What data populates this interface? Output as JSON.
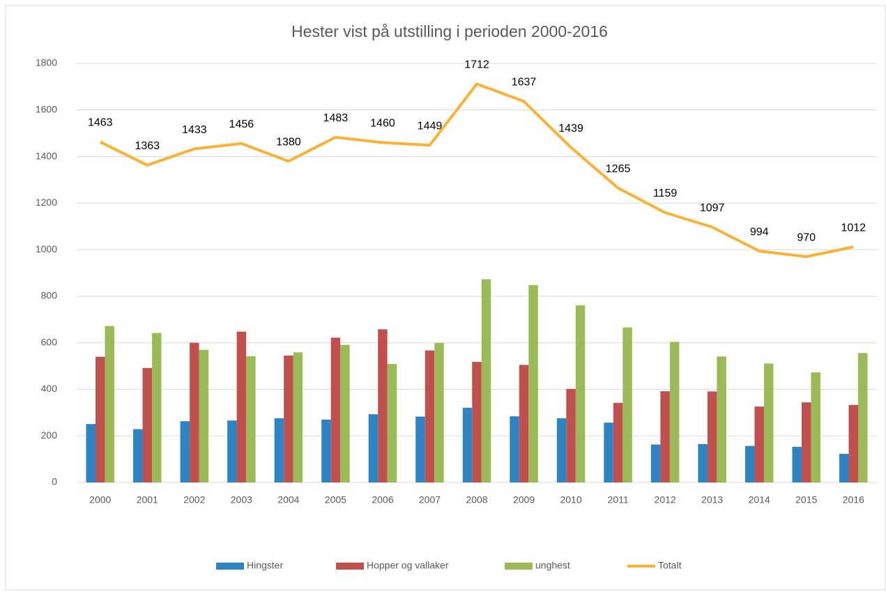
{
  "chart_data": {
    "type": "bar-line",
    "title": "Hester vist på utstilling i perioden 2000-2016",
    "categories": [
      "2000",
      "2001",
      "2002",
      "2003",
      "2004",
      "2005",
      "2006",
      "2007",
      "2008",
      "2009",
      "2010",
      "2011",
      "2012",
      "2013",
      "2014",
      "2015",
      "2016"
    ],
    "series": [
      {
        "name": "Hingster",
        "type": "bar",
        "color": "#2e83c3",
        "values": [
          251,
          229,
          263,
          266,
          276,
          270,
          293,
          283,
          321,
          284,
          276,
          257,
          163,
          165,
          157,
          153,
          123
        ]
      },
      {
        "name": "Hopper og vallaker",
        "type": "bar",
        "color": "#c0504d",
        "values": [
          540,
          492,
          600,
          648,
          545,
          622,
          658,
          567,
          518,
          505,
          402,
          342,
          392,
          391,
          326,
          344,
          333
        ]
      },
      {
        "name": "unghest",
        "type": "bar",
        "color": "#9bbb59",
        "values": [
          672,
          642,
          570,
          542,
          559,
          591,
          509,
          599,
          873,
          848,
          761,
          666,
          604,
          541,
          511,
          473,
          556
        ]
      },
      {
        "name": "Totalt",
        "type": "line",
        "color": "#f9b233",
        "values": [
          1463,
          1363,
          1433,
          1456,
          1380,
          1483,
          1460,
          1449,
          1712,
          1637,
          1439,
          1265,
          1159,
          1097,
          994,
          970,
          1012
        ]
      }
    ],
    "ylim": [
      0,
      1800
    ],
    "yticks": [
      0,
      200,
      400,
      600,
      800,
      1000,
      1200,
      1400,
      1600,
      1800
    ],
    "grid": true,
    "legend": "bottom"
  }
}
